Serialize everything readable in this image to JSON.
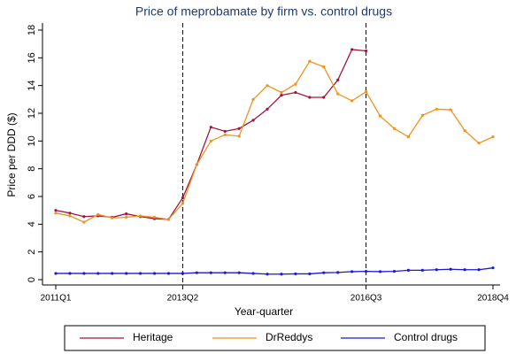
{
  "chart_data": {
    "type": "line",
    "title": "Price of meprobamate by firm vs. control drugs",
    "x_label": "Year-quarter",
    "y_label": "Price per DDD ($)",
    "categories": [
      "2011Q1",
      null,
      null,
      null,
      null,
      null,
      null,
      null,
      null,
      "2013Q2",
      null,
      null,
      null,
      null,
      null,
      null,
      null,
      null,
      null,
      null,
      null,
      null,
      "2016Q3",
      null,
      null,
      null,
      null,
      null,
      null,
      null,
      null,
      "2018Q4"
    ],
    "series": [
      {
        "name": "Heritage",
        "color": "#a0173e",
        "values": [
          5.0,
          4.8,
          4.55,
          4.6,
          4.5,
          4.75,
          4.55,
          4.4,
          4.35,
          5.9,
          8.3,
          11.0,
          10.7,
          10.9,
          11.5,
          12.3,
          13.3,
          13.5,
          13.15,
          13.15,
          14.4,
          16.6,
          16.5,
          null,
          null,
          null,
          null,
          null,
          null,
          null,
          null,
          null
        ]
      },
      {
        "name": "DrReddys",
        "color": "#f0921e",
        "values": [
          4.8,
          4.6,
          4.15,
          4.7,
          4.45,
          4.5,
          4.6,
          4.5,
          4.35,
          5.5,
          8.3,
          10.0,
          10.45,
          10.35,
          13.0,
          14.0,
          13.5,
          14.1,
          15.75,
          15.35,
          13.4,
          12.9,
          13.55,
          11.8,
          10.9,
          10.3,
          11.85,
          12.3,
          12.25,
          10.75,
          9.85,
          10.3
        ]
      },
      {
        "name": "Control drugs",
        "color": "#1a1ad6",
        "values": [
          0.45,
          0.45,
          0.45,
          0.45,
          0.45,
          0.45,
          0.45,
          0.45,
          0.45,
          0.45,
          0.5,
          0.5,
          0.5,
          0.5,
          0.45,
          0.4,
          0.4,
          0.42,
          0.42,
          0.5,
          0.52,
          0.58,
          0.6,
          0.58,
          0.6,
          0.68,
          0.68,
          0.72,
          0.75,
          0.72,
          0.72,
          0.85
        ]
      }
    ],
    "ylim": [
      0,
      18
    ],
    "yticks": [
      0,
      2,
      4,
      6,
      8,
      10,
      12,
      14,
      16,
      18
    ],
    "legend": "bottom"
  }
}
